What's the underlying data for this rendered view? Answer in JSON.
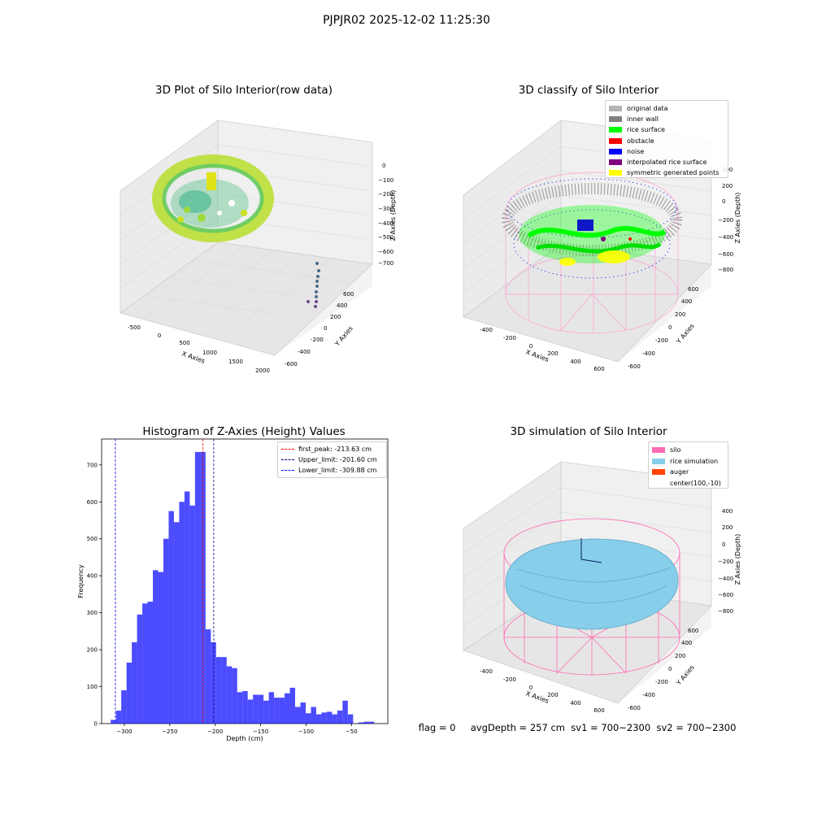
{
  "figure": {
    "suptitle": "PJPJR02 2025-12-02 11:25:30",
    "status_text": "flag = 0     avgDepth = 257 cm  sv1 = 700~2300  sv2 = 700~2300"
  },
  "panels": {
    "raw": {
      "title": "3D Plot of Silo Interior(row data)",
      "xlabel": "X Axies",
      "ylabel": "Y Axies",
      "zlabel": "Z Axies (Depth)",
      "xticks": [
        "-500",
        "0",
        "500",
        "1000",
        "1500",
        "2000"
      ],
      "yticks": [
        "-600",
        "-400",
        "-200",
        "0",
        "200",
        "400",
        "600"
      ],
      "zticks": [
        "0",
        "−100",
        "−200",
        "−300",
        "−400",
        "−500",
        "−600",
        "−700"
      ]
    },
    "classify": {
      "title": "3D classify of Silo Interior",
      "xlabel": "X Axies",
      "ylabel": "Y Axies",
      "zlabel": "Z Axies (Depth)",
      "xticks": [
        "-400",
        "-200",
        "0",
        "200",
        "400",
        "600"
      ],
      "yticks": [
        "-600",
        "-400",
        "-200",
        "0",
        "200",
        "400",
        "600"
      ],
      "zticks": [
        "200",
        "0",
        "−200",
        "−400",
        "−600",
        "−800"
      ],
      "legend": [
        {
          "label": "original data",
          "color": "#b3b3b3"
        },
        {
          "label": "inner wall",
          "color": "#808080"
        },
        {
          "label": "rice surface",
          "color": "#00ff00"
        },
        {
          "label": "obstacle",
          "color": "#ff0000"
        },
        {
          "label": "noise",
          "color": "#0000ff"
        },
        {
          "label": "interpolated rice surface",
          "color": "#800080"
        },
        {
          "label": "symmetric generated points",
          "color": "#ffff00"
        }
      ]
    },
    "simulation": {
      "title": "3D simulation of Silo Interior",
      "xlabel": "X Axies",
      "ylabel": "Y Axies",
      "zlabel": "Z Axies (Depth)",
      "xticks": [
        "-400",
        "-200",
        "0",
        "200",
        "400",
        "600"
      ],
      "yticks": [
        "-600",
        "-400",
        "-200",
        "0",
        "200",
        "400",
        "600"
      ],
      "zticks": [
        "400",
        "200",
        "0",
        "−200",
        "−400",
        "−600",
        "−800"
      ],
      "legend": [
        {
          "label": "silo",
          "color": "#ff69b4"
        },
        {
          "label": "rice simulation",
          "color": "#87ceeb"
        },
        {
          "label": "auger",
          "color": "#ff4500"
        },
        {
          "label": "center(100,-10)",
          "color": ""
        }
      ]
    }
  },
  "chart_data": {
    "type": "bar",
    "title": "Histogram of Z-Axies (Height) Values",
    "xlabel": "Depth (cm)",
    "ylabel": "Frequency",
    "xlim": [
      -325,
      -10
    ],
    "ylim": [
      0,
      770
    ],
    "xticks": [
      -300,
      -250,
      -200,
      -150,
      -100,
      -50
    ],
    "xtick_labels": [
      "−300",
      "−250",
      "−200",
      "−150",
      "−100",
      "−50"
    ],
    "yticks": [
      0,
      100,
      200,
      300,
      400,
      500,
      600,
      700
    ],
    "color": "#0000ff",
    "bin_start": -315,
    "bin_width": 5.8,
    "values": [
      10,
      35,
      90,
      165,
      220,
      295,
      325,
      330,
      415,
      410,
      500,
      575,
      545,
      600,
      628,
      590,
      735,
      735,
      255,
      220,
      180,
      180,
      155,
      150,
      85,
      88,
      65,
      78,
      78,
      62,
      85,
      70,
      70,
      82,
      97,
      45,
      57,
      28,
      45,
      25,
      30,
      32,
      25,
      35,
      62,
      25,
      0,
      3,
      5,
      5
    ],
    "vlines": [
      {
        "x": -213.63,
        "label": "first_peak: -213.63 cm",
        "color": "#ff0000"
      },
      {
        "x": -201.6,
        "label": "Upper_limit: -201.60 cm",
        "color": "#00008b"
      },
      {
        "x": -309.88,
        "label": "Lower_limit: -309.88 cm",
        "color": "#0000ff"
      }
    ]
  }
}
